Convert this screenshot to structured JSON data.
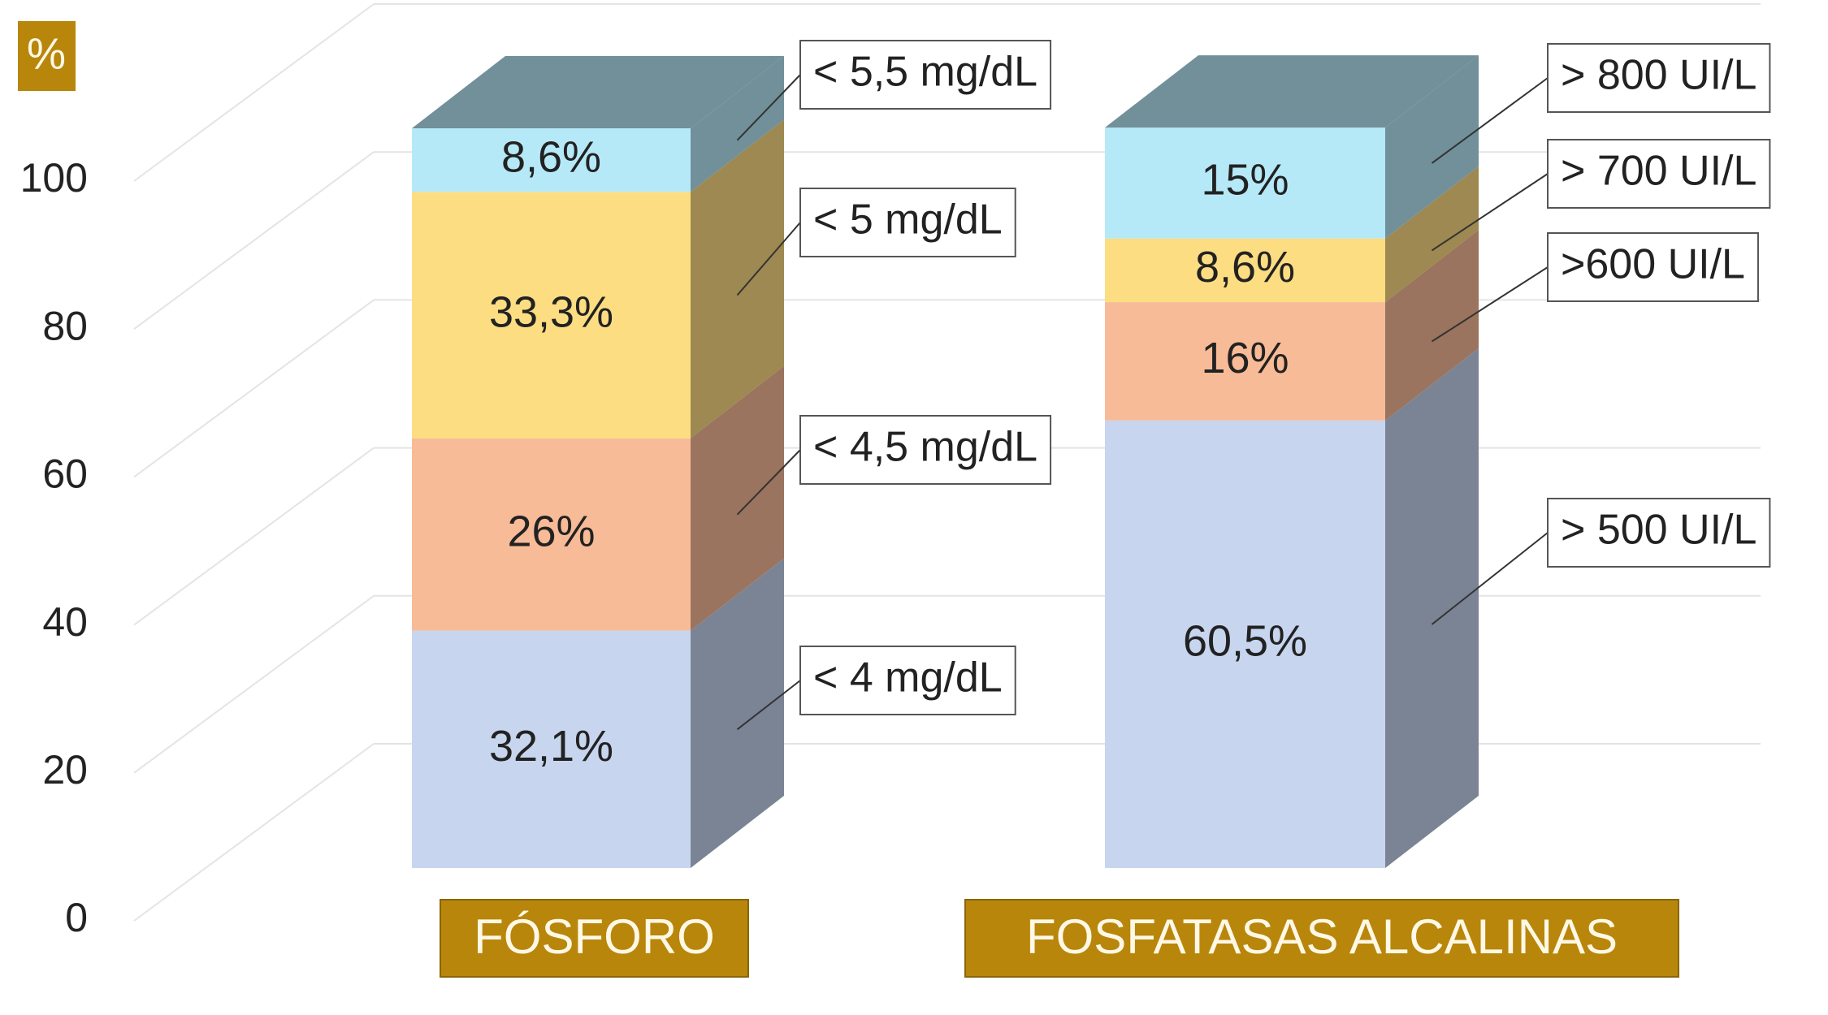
{
  "chart_data": {
    "type": "stacked-bar-3d",
    "y_label": "%",
    "ylim": [
      0,
      100
    ],
    "yticks": [
      0,
      20,
      40,
      60,
      80,
      100
    ],
    "grid": true,
    "bars": [
      {
        "category": "FÓSFORO",
        "segments": [
          {
            "name": "< 4 mg/dL",
            "value": 32.1,
            "value_label": "32,1%",
            "color": "#c7d5ef"
          },
          {
            "name": "< 4,5 mg/dL",
            "value": 26,
            "value_label": "26%",
            "color": "#f8bb97"
          },
          {
            "name": "< 5 mg/dL",
            "value": 33.3,
            "value_label": "33,3%",
            "color": "#fddd82"
          },
          {
            "name": "< 5,5 mg/dL",
            "value": 8.6,
            "value_label": "8,6%",
            "color": "#b6e9f8"
          }
        ]
      },
      {
        "category": "FOSFATASAS ALCALINAS",
        "segments": [
          {
            "name": "> 500 UI/L",
            "value": 60.5,
            "value_label": "60,5%",
            "color": "#c7d5ef"
          },
          {
            "name": ">600 UI/L",
            "value": 16,
            "value_label": "16%",
            "color": "#f8bb97"
          },
          {
            "name": "> 700 UI/L",
            "value": 8.6,
            "value_label": "8,6%",
            "color": "#fddd82"
          },
          {
            "name": "> 800 UI/L",
            "value": 15,
            "value_label": "15%",
            "color": "#b6e9f8"
          }
        ]
      }
    ]
  }
}
